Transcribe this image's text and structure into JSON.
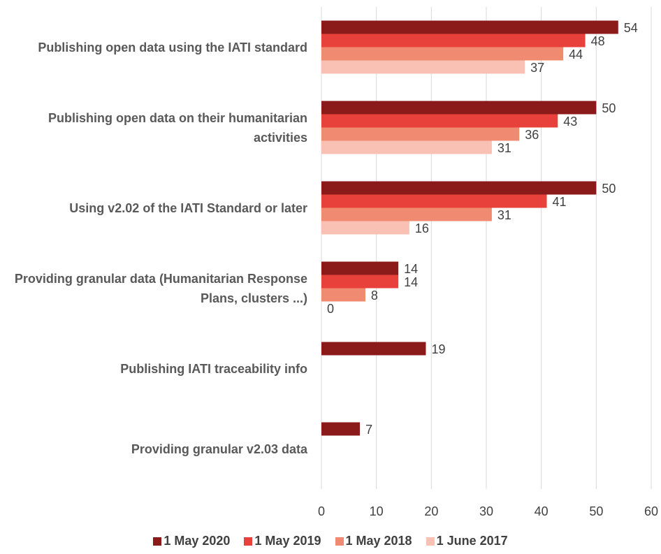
{
  "chart_data": {
    "type": "bar",
    "orientation": "horizontal",
    "categories": [
      "Publishing open data using the IATI standard",
      "Publishing open data on their humanitarian activities",
      "Using v2.02 of the IATI Standard or later",
      "Providing granular data (Humanitarian Response Plans, clusters ...)",
      "Publishing IATI traceability info",
      "Providing granular v2.03 data"
    ],
    "series": [
      {
        "name": "1 May 2020",
        "color": "#8b1a1a",
        "values": [
          54,
          50,
          50,
          14,
          19,
          7
        ]
      },
      {
        "name": "1 May 2019",
        "color": "#e8413c",
        "values": [
          48,
          43,
          41,
          14,
          null,
          null
        ]
      },
      {
        "name": "1 May 2018",
        "color": "#f08a70",
        "values": [
          44,
          36,
          31,
          8,
          null,
          null
        ]
      },
      {
        "name": "1 June 2017",
        "color": "#f9c0b4",
        "values": [
          37,
          31,
          16,
          0,
          null,
          null
        ]
      }
    ],
    "xlim": [
      0,
      60
    ],
    "xticks": [
      0,
      10,
      20,
      30,
      40,
      50,
      60
    ],
    "grid": true,
    "legend": "bottom"
  }
}
